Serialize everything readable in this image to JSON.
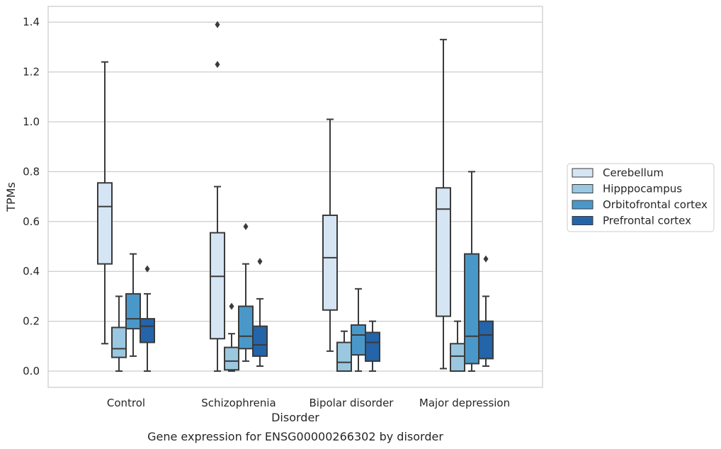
{
  "chart_data": {
    "type": "box",
    "title": "Gene expression for ENSG00000266302 by disorder",
    "xlabel": "Disorder",
    "ylabel": "TPMs",
    "ylim": [
      -0.065,
      1.465
    ],
    "yticks": [
      0.0,
      0.2,
      0.4,
      0.6,
      0.8,
      1.0,
      1.2,
      1.4
    ],
    "ytick_labels": [
      "0.0",
      "0.2",
      "0.4",
      "0.6",
      "0.8",
      "1.0",
      "1.2",
      "1.4"
    ],
    "grid": true,
    "legend_position": "right",
    "categories": [
      "Control",
      "Schizophrenia",
      "Bipolar disorder",
      "Major depression"
    ],
    "series": [
      {
        "name": "Cerebellum",
        "color": "#d6e5f4",
        "boxes": [
          {
            "whisker_low": 0.11,
            "q1": 0.43,
            "median": 0.66,
            "q3": 0.755,
            "whisker_high": 1.24,
            "outliers": []
          },
          {
            "whisker_low": 0.0,
            "q1": 0.13,
            "median": 0.38,
            "q3": 0.555,
            "whisker_high": 0.74,
            "outliers": [
              1.23,
              1.39
            ]
          },
          {
            "whisker_low": 0.08,
            "q1": 0.245,
            "median": 0.455,
            "q3": 0.625,
            "whisker_high": 1.01,
            "outliers": []
          },
          {
            "whisker_low": 0.01,
            "q1": 0.22,
            "median": 0.65,
            "q3": 0.735,
            "whisker_high": 1.33,
            "outliers": []
          }
        ]
      },
      {
        "name": "Hipppocampus",
        "color": "#9ac8e0",
        "boxes": [
          {
            "whisker_low": 0.0,
            "q1": 0.055,
            "median": 0.09,
            "q3": 0.175,
            "whisker_high": 0.3,
            "outliers": []
          },
          {
            "whisker_low": 0.0,
            "q1": 0.005,
            "median": 0.04,
            "q3": 0.095,
            "whisker_high": 0.15,
            "outliers": [
              0.26
            ]
          },
          {
            "whisker_low": 0.0,
            "q1": 0.0,
            "median": 0.035,
            "q3": 0.115,
            "whisker_high": 0.16,
            "outliers": []
          },
          {
            "whisker_low": 0.0,
            "q1": 0.0,
            "median": 0.06,
            "q3": 0.11,
            "whisker_high": 0.2,
            "outliers": []
          }
        ]
      },
      {
        "name": "Orbitofrontal cortex",
        "color": "#4a98c9",
        "boxes": [
          {
            "whisker_low": 0.06,
            "q1": 0.17,
            "median": 0.21,
            "q3": 0.31,
            "whisker_high": 0.47,
            "outliers": []
          },
          {
            "whisker_low": 0.04,
            "q1": 0.09,
            "median": 0.14,
            "q3": 0.26,
            "whisker_high": 0.43,
            "outliers": [
              0.58
            ]
          },
          {
            "whisker_low": 0.0,
            "q1": 0.065,
            "median": 0.145,
            "q3": 0.185,
            "whisker_high": 0.33,
            "outliers": []
          },
          {
            "whisker_low": 0.0,
            "q1": 0.03,
            "median": 0.14,
            "q3": 0.47,
            "whisker_high": 0.8,
            "outliers": []
          }
        ]
      },
      {
        "name": "Prefrontal cortex",
        "color": "#2464a8",
        "boxes": [
          {
            "whisker_low": 0.0,
            "q1": 0.115,
            "median": 0.18,
            "q3": 0.21,
            "whisker_high": 0.31,
            "outliers": [
              0.41
            ]
          },
          {
            "whisker_low": 0.02,
            "q1": 0.06,
            "median": 0.105,
            "q3": 0.18,
            "whisker_high": 0.29,
            "outliers": [
              0.44
            ]
          },
          {
            "whisker_low": 0.0,
            "q1": 0.04,
            "median": 0.115,
            "q3": 0.155,
            "whisker_high": 0.2,
            "outliers": []
          },
          {
            "whisker_low": 0.02,
            "q1": 0.05,
            "median": 0.145,
            "q3": 0.2,
            "whisker_high": 0.3,
            "outliers": [
              0.45
            ]
          }
        ]
      }
    ]
  }
}
